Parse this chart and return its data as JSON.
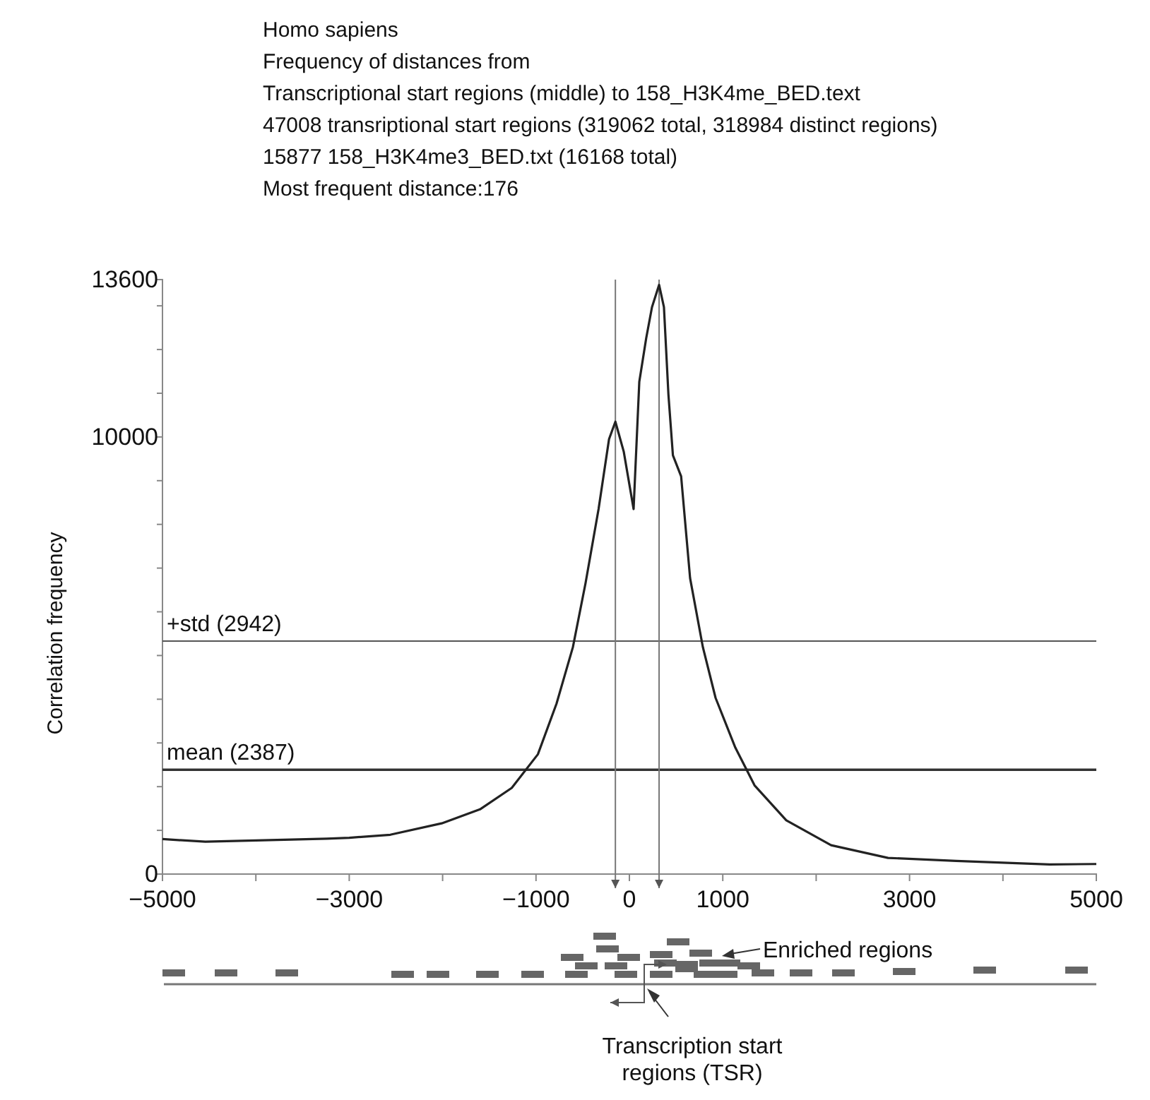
{
  "chart_data": {
    "type": "line",
    "title": "Homo sapiens",
    "subtitle": "Frequency of distances from\nTranscriptional start regions (middle) to 158_H3K4me_BED.text\n47008 transriptional start regions (319062 total, 318984 distinct regions)\n15877 158_H3K4me3_BED.txt (16168 total)\nMost frequent distance:176",
    "ylabel": "Correlation frequency",
    "x": [
      -5000,
      -4540,
      -4000,
      -3240,
      -3000,
      -2560,
      -2010,
      -1600,
      -1260,
      -980,
      -780,
      -605,
      -470,
      -330,
      -218,
      -150,
      -60,
      45,
      106,
      180,
      242,
      318,
      370,
      418,
      466,
      554,
      650,
      787,
      923,
      1135,
      1340,
      1680,
      2160,
      2770,
      3500,
      4000,
      4500,
      5000
    ],
    "series": [
      {
        "color": "#222222",
        "values": [
          800,
          740,
          770,
          810,
          830,
          900,
          1160,
          1480,
          1970,
          2740,
          3900,
          5190,
          6650,
          8350,
          9950,
          10350,
          9660,
          8350,
          11260,
          12260,
          12970,
          13480,
          12970,
          10970,
          9580,
          9100,
          6770,
          5190,
          4030,
          2890,
          2030,
          1230,
          660,
          370,
          300,
          260,
          220,
          230
        ]
      }
    ],
    "xlim": [
      -5000,
      5000
    ],
    "xticks": [
      -5000,
      {
        "value": -4000,
        "label": null
      },
      -3000,
      {
        "value": -2000,
        "label": null
      },
      -1000,
      0,
      1000,
      {
        "value": 2000,
        "label": null
      },
      3000,
      {
        "value": 4000,
        "label": null
      },
      5000
    ],
    "ylim": [
      0,
      13600
    ],
    "yticks": [
      0,
      {
        "value": 1000,
        "label": null
      },
      {
        "value": 2000,
        "label": null
      },
      {
        "value": 3000,
        "label": null
      },
      {
        "value": 4000,
        "label": null
      },
      {
        "value": 5000,
        "label": null
      },
      {
        "value": 6000,
        "label": null
      },
      {
        "value": 7000,
        "label": null
      },
      {
        "value": 8000,
        "label": null
      },
      {
        "value": 9000,
        "label": null
      },
      10000,
      {
        "value": 11000,
        "label": null
      },
      {
        "value": 12000,
        "label": null
      },
      {
        "value": 13000,
        "label": null
      },
      13600
    ],
    "grid": false,
    "marker": "none",
    "line_style": "solid",
    "ref_lines": [
      {
        "axis": "y",
        "value": 5329,
        "label": "+std (2942)",
        "color": "#555555"
      },
      {
        "axis": "y",
        "value": 2387,
        "label": "mean (2387)",
        "color": "#333333"
      },
      {
        "axis": "x",
        "value": -150,
        "label": null,
        "color": "#777777"
      },
      {
        "axis": "x",
        "value": 318,
        "label": null,
        "color": "#777777"
      }
    ],
    "annotations": [
      "Enriched regions",
      "Transcription start\nregions (TSR)"
    ]
  }
}
